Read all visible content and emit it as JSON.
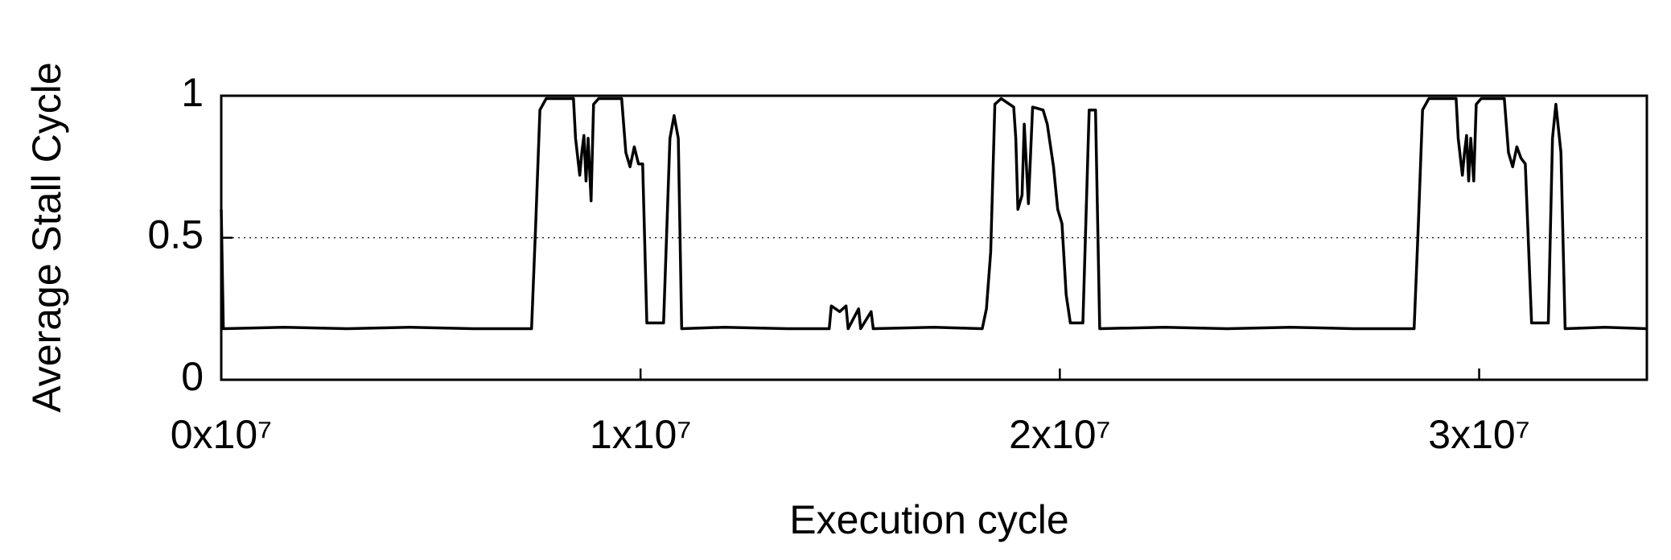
{
  "chart_data": {
    "type": "line",
    "xlabel": "Execution cycle",
    "ylabel": "Average Stall Cycle",
    "x": [
      0,
      50000,
      1500000,
      3000000,
      4500000,
      6000000,
      7400000,
      7500000,
      7600000,
      7750000,
      8400000,
      8450000,
      8550000,
      8600000,
      8650000,
      8700000,
      8750000,
      8820000,
      8880000,
      9000000,
      9550000,
      9650000,
      9750000,
      9850000,
      9950000,
      10050000,
      10150000,
      10550000,
      10700000,
      10800000,
      10900000,
      10980000,
      12000000,
      13500000,
      14500000,
      14550000,
      14750000,
      14900000,
      14950000,
      15200000,
      15250000,
      15500000,
      15550000,
      17000000,
      18150000,
      18250000,
      18350000,
      18450000,
      18600000,
      18900000,
      18950000,
      19000000,
      19100000,
      19150000,
      19250000,
      19350000,
      19600000,
      19700000,
      19850000,
      19950000,
      20050000,
      20150000,
      20250000,
      20550000,
      20700000,
      20850000,
      20950000,
      22500000,
      24000000,
      25500000,
      27000000,
      28450000,
      28550000,
      28650000,
      28800000,
      29450000,
      29500000,
      29600000,
      29650000,
      29700000,
      29750000,
      29800000,
      29870000,
      29930000,
      30050000,
      30600000,
      30700000,
      30800000,
      30900000,
      31000000,
      31100000,
      31250000,
      31650000,
      31750000,
      31830000,
      31950000,
      32050000,
      33000000,
      34000000
    ],
    "series": [
      {
        "color": "#000000",
        "values": [
          0.6,
          0.18,
          0.185,
          0.18,
          0.185,
          0.18,
          0.18,
          0.55,
          0.95,
          0.99,
          0.99,
          0.85,
          0.72,
          0.8,
          0.86,
          0.7,
          0.85,
          0.63,
          0.97,
          0.99,
          0.99,
          0.8,
          0.75,
          0.82,
          0.76,
          0.76,
          0.2,
          0.2,
          0.85,
          0.93,
          0.85,
          0.18,
          0.185,
          0.18,
          0.18,
          0.26,
          0.24,
          0.26,
          0.18,
          0.25,
          0.18,
          0.24,
          0.18,
          0.185,
          0.18,
          0.25,
          0.45,
          0.97,
          0.99,
          0.96,
          0.85,
          0.6,
          0.65,
          0.9,
          0.62,
          0.96,
          0.95,
          0.9,
          0.75,
          0.6,
          0.55,
          0.3,
          0.2,
          0.2,
          0.95,
          0.95,
          0.18,
          0.185,
          0.18,
          0.185,
          0.18,
          0.18,
          0.55,
          0.95,
          0.99,
          0.99,
          0.85,
          0.72,
          0.8,
          0.86,
          0.7,
          0.85,
          0.7,
          0.97,
          0.99,
          0.99,
          0.8,
          0.75,
          0.82,
          0.78,
          0.76,
          0.2,
          0.2,
          0.85,
          0.97,
          0.8,
          0.18,
          0.185,
          0.18
        ]
      }
    ],
    "xlim": [
      0,
      34000000
    ],
    "xticks": [
      {
        "value": 0,
        "label": "0x10⁷"
      },
      {
        "value": 10000000,
        "label": "1x10⁷"
      },
      {
        "value": 20000000,
        "label": "2x10⁷"
      },
      {
        "value": 30000000,
        "label": "3x10⁷"
      }
    ],
    "ylim": [
      0,
      1
    ],
    "yticks": [
      0,
      0.5,
      1
    ],
    "grid": true
  }
}
